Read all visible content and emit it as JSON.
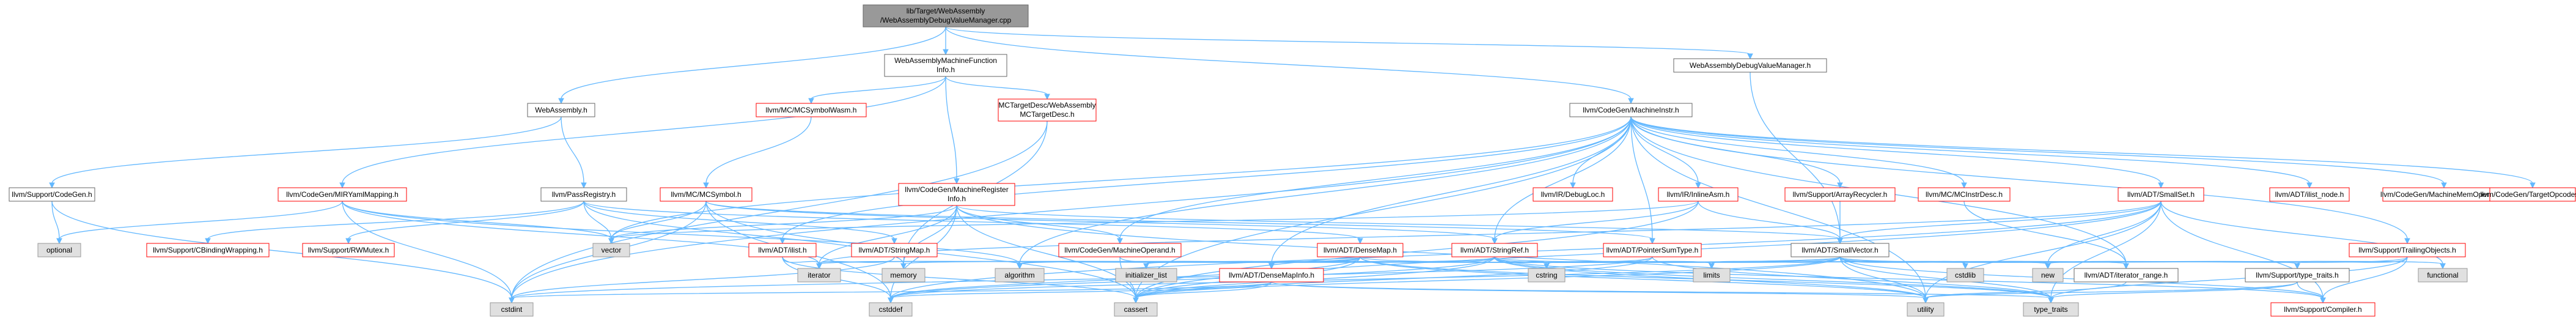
{
  "diagram": {
    "title": "",
    "nodes": [
      {
        "id": "root",
        "label": [
          "lib/Target/WebAssembly",
          "/WebAssemblyDebugValueManager.cpp"
        ],
        "style": "root"
      },
      {
        "id": "wamfi",
        "label": [
          "WebAssemblyMachineFunction",
          "Info.h"
        ],
        "style": "norm"
      },
      {
        "id": "wadvm",
        "label": [
          "WebAssemblyDebugValueManager.h"
        ],
        "style": "norm"
      },
      {
        "id": "wah",
        "label": [
          "WebAssembly.h"
        ],
        "style": "norm"
      },
      {
        "id": "mcsymwasm",
        "label": [
          "llvm/MC/MCSymbolWasm.h"
        ],
        "style": "red"
      },
      {
        "id": "mctd",
        "label": [
          "MCTargetDesc/WebAssembly",
          "MCTargetDesc.h"
        ],
        "style": "red"
      },
      {
        "id": "mi",
        "label": [
          "llvm/CodeGen/MachineInstr.h"
        ],
        "style": "norm"
      },
      {
        "id": "codegenh",
        "label": [
          "llvm/Support/CodeGen.h"
        ],
        "style": "norm"
      },
      {
        "id": "mirym",
        "label": [
          "llvm/CodeGen/MIRYamlMapping.h"
        ],
        "style": "red"
      },
      {
        "id": "passreg",
        "label": [
          "llvm/PassRegistry.h"
        ],
        "style": "norm"
      },
      {
        "id": "mcsym",
        "label": [
          "llvm/MC/MCSymbol.h"
        ],
        "style": "red"
      },
      {
        "id": "mri",
        "label": [
          "llvm/CodeGen/MachineRegister",
          "Info.h"
        ],
        "style": "red"
      },
      {
        "id": "debugloc",
        "label": [
          "llvm/IR/DebugLoc.h"
        ],
        "style": "red"
      },
      {
        "id": "inlineasm",
        "label": [
          "llvm/IR/InlineAsm.h"
        ],
        "style": "red"
      },
      {
        "id": "arecycler",
        "label": [
          "llvm/Support/ArrayRecycler.h"
        ],
        "style": "red"
      },
      {
        "id": "mcinstrdesc",
        "label": [
          "llvm/MC/MCInstrDesc.h"
        ],
        "style": "red"
      },
      {
        "id": "smallset",
        "label": [
          "llvm/ADT/SmallSet.h"
        ],
        "style": "red"
      },
      {
        "id": "ilistnode",
        "label": [
          "llvm/ADT/ilist_node.h"
        ],
        "style": "red"
      },
      {
        "id": "mmo",
        "label": [
          "llvm/CodeGen/MachineMemOperand.h"
        ],
        "style": "red"
      },
      {
        "id": "tgtopc",
        "label": [
          "llvm/CodeGen/TargetOpcodes.h"
        ],
        "style": "red"
      },
      {
        "id": "optional",
        "label": [
          "optional"
        ],
        "style": "sys"
      },
      {
        "id": "cbind",
        "label": [
          "llvm/Support/CBindingWrapping.h"
        ],
        "style": "red"
      },
      {
        "id": "rwmutex",
        "label": [
          "llvm/Support/RWMutex.h"
        ],
        "style": "red"
      },
      {
        "id": "vector",
        "label": [
          "vector"
        ],
        "style": "sys"
      },
      {
        "id": "ilisth",
        "label": [
          "llvm/ADT/ilist.h"
        ],
        "style": "red"
      },
      {
        "id": "stringmap",
        "label": [
          "llvm/ADT/StringMap.h"
        ],
        "style": "red"
      },
      {
        "id": "mo",
        "label": [
          "llvm/CodeGen/MachineOperand.h"
        ],
        "style": "red"
      },
      {
        "id": "densemap",
        "label": [
          "llvm/ADT/DenseMap.h"
        ],
        "style": "red"
      },
      {
        "id": "stringref",
        "label": [
          "llvm/ADT/StringRef.h"
        ],
        "style": "red"
      },
      {
        "id": "pst",
        "label": [
          "llvm/ADT/PointerSumType.h"
        ],
        "style": "red"
      },
      {
        "id": "smallvector",
        "label": [
          "llvm/ADT/SmallVector.h"
        ],
        "style": "norm"
      },
      {
        "id": "trailobj",
        "label": [
          "llvm/Support/TrailingObjects.h"
        ],
        "style": "red"
      },
      {
        "id": "iterator",
        "label": [
          "iterator"
        ],
        "style": "sys"
      },
      {
        "id": "memory",
        "label": [
          "memory"
        ],
        "style": "sys"
      },
      {
        "id": "algorithm",
        "label": [
          "algorithm"
        ],
        "style": "sys"
      },
      {
        "id": "initlist",
        "label": [
          "initializer_list"
        ],
        "style": "sys"
      },
      {
        "id": "densemapinfo",
        "label": [
          "llvm/ADT/DenseMapInfo.h"
        ],
        "style": "red"
      },
      {
        "id": "cstring",
        "label": [
          "cstring"
        ],
        "style": "sys"
      },
      {
        "id": "limits",
        "label": [
          "limits"
        ],
        "style": "sys"
      },
      {
        "id": "cstdlib",
        "label": [
          "cstdlib"
        ],
        "style": "sys"
      },
      {
        "id": "new",
        "label": [
          "new"
        ],
        "style": "sys"
      },
      {
        "id": "iterrange",
        "label": [
          "llvm/ADT/iterator_range.h"
        ],
        "style": "norm"
      },
      {
        "id": "typetraitsh",
        "label": [
          "llvm/Support/type_traits.h"
        ],
        "style": "norm"
      },
      {
        "id": "functional",
        "label": [
          "functional"
        ],
        "style": "sys"
      },
      {
        "id": "cstdint",
        "label": [
          "cstdint"
        ],
        "style": "sys"
      },
      {
        "id": "cstddef",
        "label": [
          "cstddef"
        ],
        "style": "sys"
      },
      {
        "id": "cassert",
        "label": [
          "cassert"
        ],
        "style": "sys"
      },
      {
        "id": "utility",
        "label": [
          "utility"
        ],
        "style": "sys"
      },
      {
        "id": "type_traits",
        "label": [
          "type_traits"
        ],
        "style": "sys"
      },
      {
        "id": "compiler",
        "label": [
          "llvm/Support/Compiler.h"
        ],
        "style": "red"
      }
    ],
    "edges": [
      [
        "root",
        "wamfi"
      ],
      [
        "root",
        "wadvm"
      ],
      [
        "root",
        "wah"
      ],
      [
        "root",
        "mi"
      ],
      [
        "wamfi",
        "mirym"
      ],
      [
        "wamfi",
        "mcsymwasm"
      ],
      [
        "wamfi",
        "mctd"
      ],
      [
        "wamfi",
        "mri"
      ],
      [
        "wadvm",
        "smallvector"
      ],
      [
        "wah",
        "codegenh"
      ],
      [
        "wah",
        "passreg"
      ],
      [
        "codegenh",
        "optional"
      ],
      [
        "codegenh",
        "cstdint"
      ],
      [
        "mirym",
        "optional"
      ],
      [
        "mirym",
        "vector"
      ],
      [
        "mirym",
        "cstdint"
      ],
      [
        "mirym",
        "algorithm"
      ],
      [
        "mirym",
        "iterator"
      ],
      [
        "passreg",
        "cbind"
      ],
      [
        "passreg",
        "rwmutex"
      ],
      [
        "passreg",
        "vector"
      ],
      [
        "passreg",
        "stringmap"
      ],
      [
        "passreg",
        "densemap"
      ],
      [
        "passreg",
        "memory"
      ],
      [
        "mcsymwasm",
        "mcsym"
      ],
      [
        "mctd",
        "memory"
      ],
      [
        "mctd",
        "cstdint"
      ],
      [
        "mcsym",
        "stringref"
      ],
      [
        "mcsym",
        "pst"
      ],
      [
        "mcsym",
        "vector"
      ],
      [
        "mcsym",
        "cassert"
      ],
      [
        "mcsym",
        "cstddef"
      ],
      [
        "mcsym",
        "cstdint"
      ],
      [
        "mri",
        "iterator"
      ],
      [
        "mri",
        "smallvector"
      ],
      [
        "mri",
        "mo"
      ],
      [
        "mri",
        "vector"
      ],
      [
        "mri",
        "memory"
      ],
      [
        "mri",
        "cassert"
      ],
      [
        "mri",
        "cstddef"
      ],
      [
        "mri",
        "utility"
      ],
      [
        "mi",
        "debugloc"
      ],
      [
        "mi",
        "inlineasm"
      ],
      [
        "mi",
        "arecycler"
      ],
      [
        "mi",
        "mcinstrdesc"
      ],
      [
        "mi",
        "smallset"
      ],
      [
        "mi",
        "ilistnode"
      ],
      [
        "mi",
        "mmo"
      ],
      [
        "mi",
        "tgtopc"
      ],
      [
        "mi",
        "trailobj"
      ],
      [
        "mi",
        "mo"
      ],
      [
        "mi",
        "densemapinfo"
      ],
      [
        "mi",
        "pst"
      ],
      [
        "mi",
        "iterrange"
      ],
      [
        "mi",
        "algorithm"
      ],
      [
        "mi",
        "cstdint"
      ],
      [
        "mi",
        "utility"
      ],
      [
        "mi",
        "cassert"
      ],
      [
        "mi",
        "ilisth"
      ],
      [
        "mi",
        "vector"
      ],
      [
        "mi",
        "stringref"
      ],
      [
        "inlineasm",
        "stringref"
      ],
      [
        "inlineasm",
        "smallvector"
      ],
      [
        "inlineasm",
        "cassert"
      ],
      [
        "inlineasm",
        "vector"
      ],
      [
        "arecycler",
        "smallvector"
      ],
      [
        "mcinstrdesc",
        "iterrange"
      ],
      [
        "smallset",
        "smallvector"
      ],
      [
        "smallset",
        "iterator"
      ],
      [
        "smallset",
        "compiler"
      ],
      [
        "smallset",
        "type_traits"
      ],
      [
        "smallset",
        "utility"
      ],
      [
        "smallset",
        "functional"
      ],
      [
        "smallset",
        "new"
      ],
      [
        "smallset",
        "cstddef"
      ],
      [
        "smallset",
        "cassert"
      ],
      [
        "trailobj",
        "compiler"
      ],
      [
        "trailobj",
        "type_traits"
      ],
      [
        "trailobj",
        "new"
      ],
      [
        "trailobj",
        "typetraitsh"
      ],
      [
        "ilisth",
        "iterator"
      ],
      [
        "ilisth",
        "cassert"
      ],
      [
        "ilisth",
        "cstddef"
      ],
      [
        "stringmap",
        "iterator"
      ],
      [
        "stringmap",
        "cstdint"
      ],
      [
        "mo",
        "densemapinfo"
      ],
      [
        "mo",
        "cassert"
      ],
      [
        "densemap",
        "densemapinfo"
      ],
      [
        "densemap",
        "algorithm"
      ],
      [
        "densemap",
        "iterator"
      ],
      [
        "densemap",
        "initlist"
      ],
      [
        "densemap",
        "new"
      ],
      [
        "densemap",
        "utility"
      ],
      [
        "densemap",
        "cassert"
      ],
      [
        "densemap",
        "cstddef"
      ],
      [
        "densemap",
        "type_traits"
      ],
      [
        "stringref",
        "iterator"
      ],
      [
        "stringref",
        "algorithm"
      ],
      [
        "stringref",
        "cassert"
      ],
      [
        "stringref",
        "cstddef"
      ],
      [
        "stringref",
        "cstring"
      ],
      [
        "stringref",
        "limits"
      ],
      [
        "stringref",
        "type_traits"
      ],
      [
        "stringref",
        "utility"
      ],
      [
        "stringref",
        "densemapinfo"
      ],
      [
        "stringref",
        "iterrange"
      ],
      [
        "stringref",
        "compiler"
      ],
      [
        "pst",
        "densemapinfo"
      ],
      [
        "pst",
        "cassert"
      ],
      [
        "pst",
        "cstdint"
      ],
      [
        "pst",
        "type_traits"
      ],
      [
        "smallvector",
        "algorithm"
      ],
      [
        "smallvector",
        "cstddef"
      ],
      [
        "smallvector",
        "cstdlib"
      ],
      [
        "smallvector",
        "cstring"
      ],
      [
        "smallvector",
        "functional"
      ],
      [
        "smallvector",
        "initlist"
      ],
      [
        "smallvector",
        "iterator"
      ],
      [
        "smallvector",
        "limits"
      ],
      [
        "smallvector",
        "memory"
      ],
      [
        "smallvector",
        "new"
      ],
      [
        "smallvector",
        "type_traits"
      ],
      [
        "smallvector",
        "utility"
      ],
      [
        "smallvector",
        "cassert"
      ],
      [
        "smallvector",
        "typetraitsh"
      ],
      [
        "smallvector",
        "compiler"
      ],
      [
        "densemapinfo",
        "cassert"
      ],
      [
        "densemapinfo",
        "cstddef"
      ],
      [
        "densemapinfo",
        "cstdint"
      ],
      [
        "densemapinfo",
        "utility"
      ],
      [
        "densemapinfo",
        "type_traits"
      ],
      [
        "iterrange",
        "utility"
      ],
      [
        "typetraitsh",
        "utility"
      ],
      [
        "typetraitsh",
        "type_traits"
      ],
      [
        "typetraitsh",
        "compiler"
      ]
    ]
  }
}
